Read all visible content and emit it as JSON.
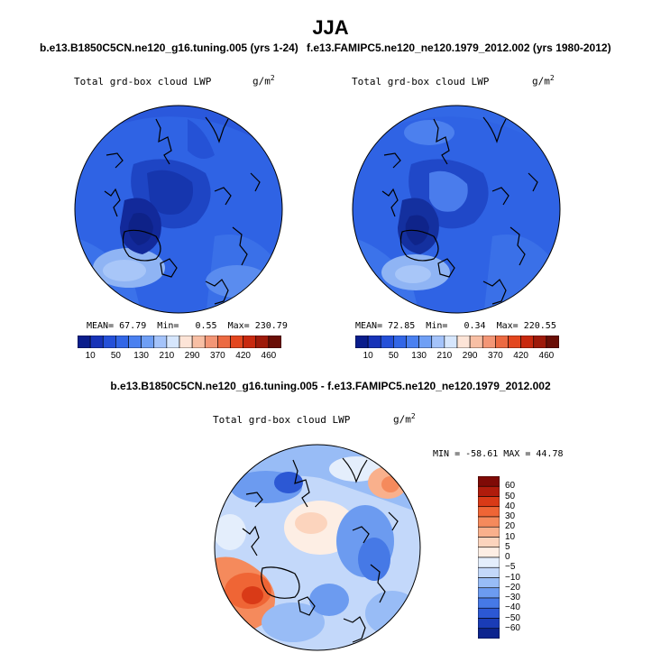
{
  "title": "JJA",
  "runs": {
    "left": "b.e13.B1850C5CN.ne120_g16.tuning.005 (yrs 1-24)",
    "right": "f.e13.FAMIPC5.ne120_ne120.1979_2012.002 (yrs 1980-2012)"
  },
  "panels": [
    {
      "variable": "Total grd-box cloud LWP",
      "units_base": "g/m",
      "units_exp": "2",
      "stats": {
        "mean_label": "MEAN=",
        "mean": "67.79",
        "min_label": "Min=",
        "min": "0.55",
        "max_label": "Max=",
        "max": "230.79"
      }
    },
    {
      "variable": "Total grd-box cloud LWP",
      "units_base": "g/m",
      "units_exp": "2",
      "stats": {
        "mean_label": "MEAN=",
        "mean": "72.85",
        "min_label": "Min=",
        "min": "0.34",
        "max_label": "Max=",
        "max": "220.55"
      }
    }
  ],
  "colorbar_ticks": [
    "10",
    "50",
    "130",
    "210",
    "290",
    "370",
    "420",
    "460"
  ],
  "colorbar_colors": [
    "#0a1d8c",
    "#1733b8",
    "#2450d8",
    "#3266e6",
    "#4a80f0",
    "#6f9ff5",
    "#a4c3fa",
    "#d6e6fd",
    "#fde4d7",
    "#f8bfa4",
    "#f39676",
    "#ec6a42",
    "#e3461e",
    "#c8290f",
    "#9e1a0a",
    "#6a0e06"
  ],
  "difference": {
    "header": "b.e13.B1850C5CN.ne120_g16.tuning.005 - f.e13.FAMIPC5.ne120_ne120.1979_2012.002",
    "variable": "Total grd-box cloud LWP",
    "units_base": "g/m",
    "units_exp": "2",
    "minmax": "MIN = -58.61 MAX =  44.78",
    "ticks": [
      "60",
      "50",
      "40",
      "30",
      "20",
      "10",
      "5",
      "0",
      "−5",
      "−10",
      "−20",
      "−30",
      "−40",
      "−50",
      "−60"
    ],
    "colors": [
      "#7f0a06",
      "#b01c0c",
      "#d93a17",
      "#ef6535",
      "#f58a5c",
      "#f9b08c",
      "#fcd4bd",
      "#fdeee4",
      "#e4eefc",
      "#c3d8fa",
      "#98bcf6",
      "#6c9bf0",
      "#4679e6",
      "#2c58d4",
      "#1a3cb6",
      "#0c248e"
    ]
  }
}
